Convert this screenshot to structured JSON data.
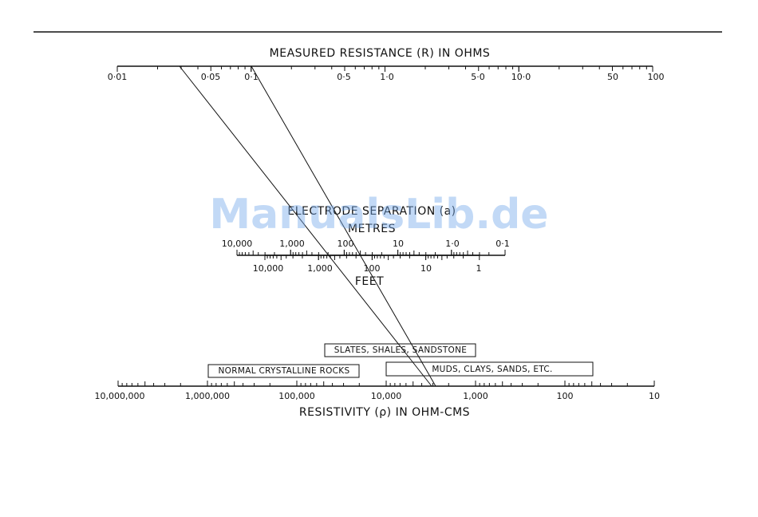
{
  "watermark": "ManualsLib.de",
  "resistance_scale": {
    "title": "MEASURED RESISTANCE (R) IN OHMS",
    "labels": [
      "0·01",
      "0·05",
      "0·1",
      "0·5",
      "1·0",
      "5·0",
      "10·0",
      "50",
      "100"
    ]
  },
  "separation_scale": {
    "title": "ELECTRODE SEPARATION (a)",
    "metres_label": "METRES",
    "metres_labels": [
      "10,000",
      "1,000",
      "100",
      "10",
      "1·0",
      "0·1"
    ],
    "feet_label": "FEET",
    "feet_labels": [
      "10,000",
      "1,000",
      "100",
      "10",
      "1"
    ]
  },
  "resistivity_scale": {
    "title": "RESISTIVITY (ρ) IN OHM-CMS",
    "labels": [
      "10,000,000",
      "1,000,000",
      "100,000",
      "10,000",
      "1,000",
      "100",
      "10"
    ]
  },
  "rock_types": [
    "SLATES, SHALES, SANDSTONE",
    "NORMAL CRYSTALLINE ROCKS",
    "MUDS, CLAYS, SANDS, ETC."
  ]
}
